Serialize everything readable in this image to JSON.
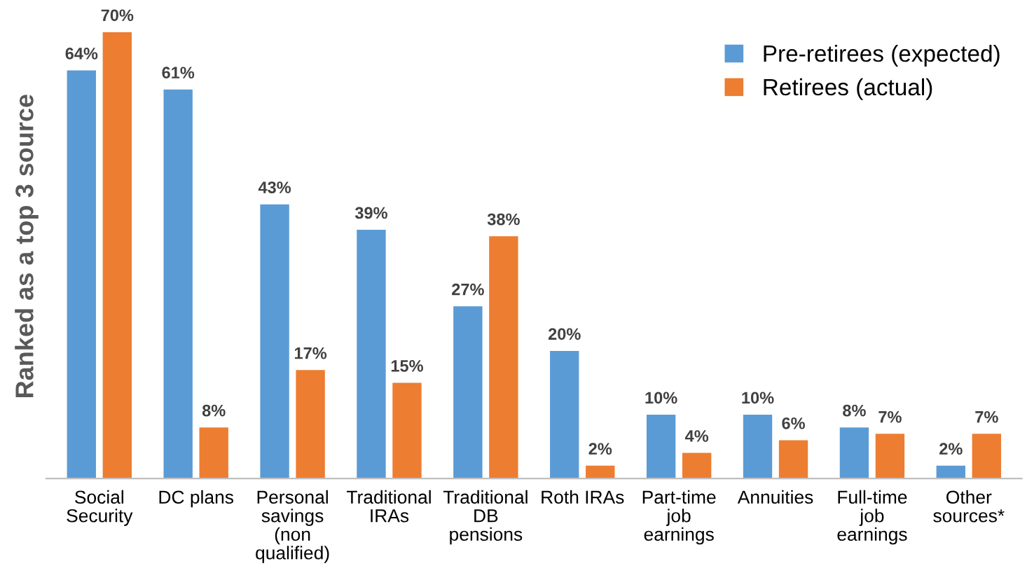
{
  "chart_data": {
    "type": "bar",
    "ylabel": "Ranked as a top 3 source",
    "categories": [
      "Social\nSecurity",
      "DC plans",
      "Personal\nsavings\n(non\nqualified)",
      "Traditional\nIRAs",
      "Traditional\nDB\npensions",
      "Roth IRAs",
      "Part-time\njob\nearnings",
      "Annuities",
      "Full-time\njob\nearnings",
      "Other\nsources*"
    ],
    "series": [
      {
        "name": "Pre-retirees (expected)",
        "color": "#5b9bd5",
        "values": [
          64,
          61,
          43,
          39,
          27,
          20,
          10,
          10,
          8,
          2
        ],
        "value_labels": [
          "64%",
          "61%",
          "43%",
          "39%",
          "27%",
          "20%",
          "10%",
          "10%",
          "8%",
          "2%"
        ]
      },
      {
        "name": "Retirees (actual)",
        "color": "#ed7d31",
        "values": [
          70,
          8,
          17,
          15,
          38,
          2,
          4,
          6,
          7,
          7
        ],
        "value_labels": [
          "70%",
          "8%",
          "17%",
          "15%",
          "38%",
          "2%",
          "4%",
          "6%",
          "7%",
          "7%"
        ]
      }
    ],
    "legend": "top right",
    "grid": false,
    "tick_labels": "x"
  }
}
